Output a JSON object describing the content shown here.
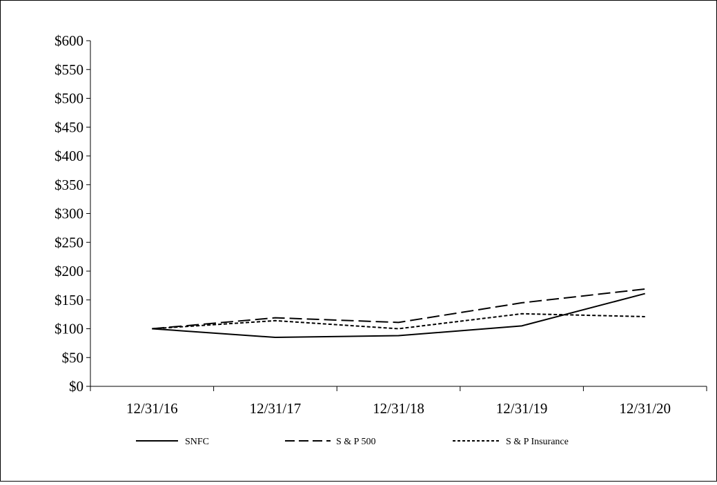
{
  "chart_data": {
    "type": "line",
    "categories": [
      "12/31/16",
      "12/31/17",
      "12/31/18",
      "12/31/19",
      "12/31/20"
    ],
    "ylim": [
      0,
      600
    ],
    "ytick_values": [
      0,
      50,
      100,
      150,
      200,
      250,
      300,
      350,
      400,
      450,
      500,
      550,
      600
    ],
    "ytick_labels": [
      "$0",
      "$50",
      "$100",
      "$150",
      "$200",
      "$250",
      "$300",
      "$350",
      "$400",
      "$450",
      "$500",
      "$550",
      "$600"
    ],
    "grid": false,
    "legend_position": "bottom",
    "series": [
      {
        "name": "SNFC",
        "values": [
          100,
          85,
          88,
          105,
          161
        ],
        "style": "solid",
        "color": "#000000"
      },
      {
        "name": "S & P 500",
        "values": [
          100,
          119,
          111,
          145,
          169
        ],
        "style": "dashed",
        "color": "#000000"
      },
      {
        "name": "S & P Insurance",
        "values": [
          100,
          114,
          100,
          126,
          121
        ],
        "style": "dotted",
        "color": "#000000"
      }
    ]
  }
}
